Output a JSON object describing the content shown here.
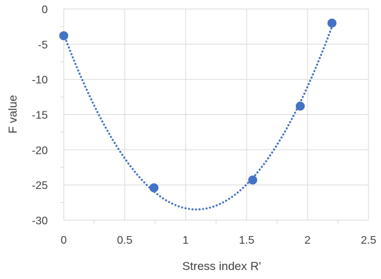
{
  "chart_data": {
    "type": "scatter",
    "title": "",
    "xlabel": "Stress index R'",
    "ylabel": "F value",
    "xlim": [
      0,
      2.5
    ],
    "ylim": [
      -30,
      0
    ],
    "x_ticks": [
      0,
      0.5,
      1,
      1.5,
      2,
      2.5
    ],
    "x_tick_labels": [
      "0",
      "0.5",
      "1",
      "1.5",
      "2",
      "2.5"
    ],
    "y_ticks": [
      0,
      -5,
      -10,
      -15,
      -20,
      -25,
      -30
    ],
    "y_tick_labels": [
      "0",
      "-5",
      "-10",
      "-15",
      "-20",
      "-25",
      "-30"
    ],
    "grid": true,
    "series": [
      {
        "kind": "points",
        "color": "#4472C4",
        "x": [
          0,
          0.74,
          1.55,
          1.94,
          2.2
        ],
        "y": [
          -3.8,
          -25.4,
          -24.3,
          -13.8,
          -2.0
        ]
      },
      {
        "kind": "trendline",
        "style": "dotted",
        "color": "#4472C4",
        "fit": "polynomial",
        "x_range": [
          0,
          2.2
        ]
      }
    ]
  }
}
